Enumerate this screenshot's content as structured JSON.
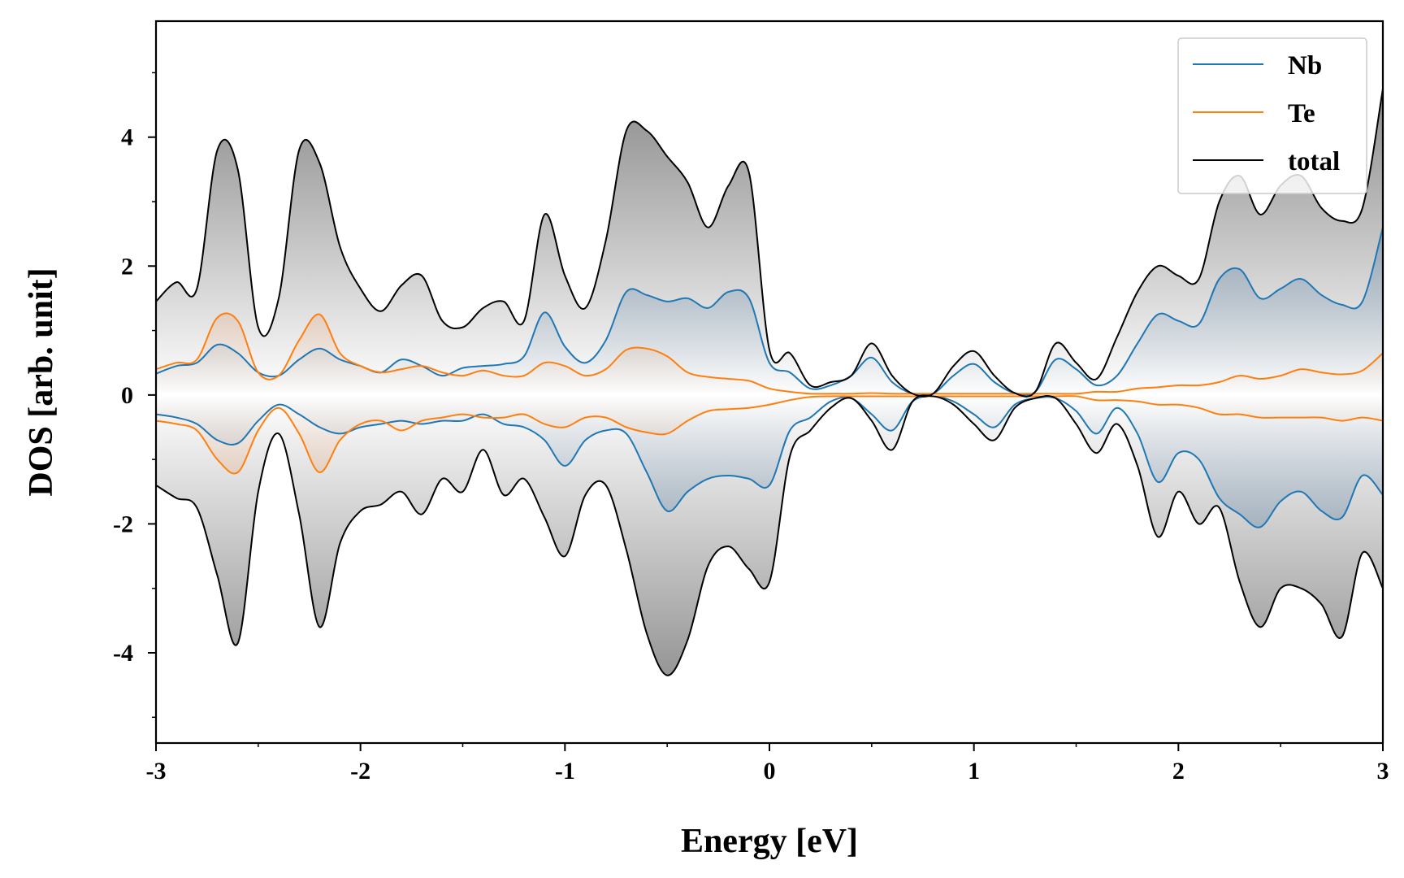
{
  "chart_data": {
    "type": "line",
    "title": "",
    "xlabel": "Energy [eV]",
    "ylabel": "DOS [arb. unit]",
    "xlim": [
      -3,
      3
    ],
    "ylim": [
      -5.4,
      5.8
    ],
    "x_ticks": [
      "-3",
      "-2",
      "-1",
      "0",
      "1",
      "2",
      "3"
    ],
    "y_ticks": [
      "-4",
      "-2",
      "0",
      "2",
      "4"
    ],
    "grid": false,
    "legend_position": "top-right",
    "fill": "spin-resolved areas shaded with vertical gradient from white at 0 to color at extremes",
    "colors": {
      "Nb": "#1f77b4",
      "Te": "#ff7f0e",
      "total": "#000000",
      "total_fill": "#8c8c8c"
    },
    "x": [
      -3.0,
      -2.9,
      -2.8,
      -2.7,
      -2.6,
      -2.5,
      -2.4,
      -2.3,
      -2.2,
      -2.1,
      -2.0,
      -1.9,
      -1.8,
      -1.7,
      -1.6,
      -1.5,
      -1.4,
      -1.3,
      -1.2,
      -1.1,
      -1.0,
      -0.9,
      -0.8,
      -0.7,
      -0.6,
      -0.5,
      -0.4,
      -0.3,
      -0.2,
      -0.1,
      0.0,
      0.1,
      0.2,
      0.3,
      0.4,
      0.5,
      0.6,
      0.7,
      0.8,
      0.9,
      1.0,
      1.1,
      1.2,
      1.3,
      1.4,
      1.5,
      1.6,
      1.7,
      1.8,
      1.9,
      2.0,
      2.1,
      2.2,
      2.3,
      2.4,
      2.5,
      2.6,
      2.7,
      2.8,
      2.9,
      3.0
    ],
    "series": [
      {
        "name": "Nb",
        "spin": "up",
        "values": [
          0.33,
          0.45,
          0.5,
          0.78,
          0.65,
          0.35,
          0.3,
          0.55,
          0.72,
          0.55,
          0.45,
          0.35,
          0.55,
          0.45,
          0.3,
          0.42,
          0.45,
          0.48,
          0.6,
          1.28,
          0.75,
          0.5,
          0.85,
          1.6,
          1.55,
          1.45,
          1.5,
          1.35,
          1.6,
          1.5,
          0.5,
          0.35,
          0.1,
          0.15,
          0.3,
          0.58,
          0.2,
          0.02,
          0.02,
          0.3,
          0.48,
          0.2,
          0.03,
          0.05,
          0.55,
          0.4,
          0.15,
          0.3,
          0.8,
          1.25,
          1.15,
          1.1,
          1.8,
          1.95,
          1.5,
          1.65,
          1.8,
          1.55,
          1.4,
          1.45,
          2.6
        ]
      },
      {
        "name": "Nb",
        "spin": "down",
        "values": [
          -0.3,
          -0.35,
          -0.45,
          -0.7,
          -0.75,
          -0.4,
          -0.15,
          -0.3,
          -0.5,
          -0.6,
          -0.5,
          -0.45,
          -0.4,
          -0.45,
          -0.4,
          -0.4,
          -0.3,
          -0.45,
          -0.5,
          -0.7,
          -1.1,
          -0.7,
          -0.55,
          -0.6,
          -1.2,
          -1.8,
          -1.5,
          -1.3,
          -1.25,
          -1.3,
          -1.4,
          -0.55,
          -0.35,
          -0.1,
          -0.05,
          -0.3,
          -0.55,
          -0.1,
          -0.02,
          -0.1,
          -0.3,
          -0.5,
          -0.15,
          -0.05,
          -0.05,
          -0.25,
          -0.6,
          -0.2,
          -0.6,
          -1.35,
          -0.9,
          -1.0,
          -1.6,
          -1.85,
          -2.05,
          -1.65,
          -1.5,
          -1.8,
          -1.9,
          -1.25,
          -1.55
        ]
      },
      {
        "name": "Te",
        "spin": "up",
        "values": [
          0.4,
          0.5,
          0.55,
          1.2,
          1.15,
          0.35,
          0.3,
          0.85,
          1.25,
          0.65,
          0.45,
          0.35,
          0.4,
          0.45,
          0.35,
          0.3,
          0.38,
          0.3,
          0.3,
          0.5,
          0.45,
          0.3,
          0.4,
          0.7,
          0.72,
          0.6,
          0.35,
          0.28,
          0.25,
          0.22,
          0.1,
          0.05,
          0.02,
          0.02,
          0.02,
          0.03,
          0.02,
          0.02,
          0.02,
          0.02,
          0.02,
          0.02,
          0.02,
          0.02,
          0.02,
          0.02,
          0.05,
          0.05,
          0.1,
          0.12,
          0.15,
          0.15,
          0.2,
          0.3,
          0.25,
          0.3,
          0.4,
          0.35,
          0.32,
          0.38,
          0.65
        ]
      },
      {
        "name": "Te",
        "spin": "down",
        "values": [
          -0.4,
          -0.45,
          -0.55,
          -1.0,
          -1.2,
          -0.55,
          -0.2,
          -0.6,
          -1.2,
          -0.7,
          -0.45,
          -0.4,
          -0.55,
          -0.4,
          -0.35,
          -0.3,
          -0.35,
          -0.35,
          -0.3,
          -0.45,
          -0.5,
          -0.35,
          -0.35,
          -0.5,
          -0.58,
          -0.6,
          -0.4,
          -0.25,
          -0.22,
          -0.2,
          -0.15,
          -0.08,
          -0.03,
          -0.02,
          -0.02,
          -0.02,
          -0.02,
          -0.02,
          -0.02,
          -0.02,
          -0.02,
          -0.02,
          -0.02,
          -0.02,
          -0.02,
          -0.02,
          -0.08,
          -0.08,
          -0.1,
          -0.15,
          -0.15,
          -0.2,
          -0.3,
          -0.3,
          -0.35,
          -0.35,
          -0.35,
          -0.35,
          -0.4,
          -0.35,
          -0.4
        ]
      },
      {
        "name": "total",
        "spin": "up",
        "values": [
          1.45,
          1.75,
          1.65,
          3.8,
          3.5,
          1.05,
          1.5,
          3.8,
          3.6,
          2.3,
          1.65,
          1.3,
          1.7,
          1.85,
          1.15,
          1.05,
          1.35,
          1.45,
          1.15,
          2.8,
          1.85,
          1.35,
          2.4,
          4.1,
          4.1,
          3.7,
          3.3,
          2.6,
          3.25,
          3.45,
          0.7,
          0.65,
          0.15,
          0.2,
          0.3,
          0.8,
          0.3,
          0.02,
          0.02,
          0.45,
          0.68,
          0.3,
          0.03,
          0.05,
          0.8,
          0.5,
          0.25,
          0.9,
          1.6,
          2.0,
          1.85,
          1.8,
          3.0,
          3.4,
          2.8,
          3.25,
          3.4,
          2.9,
          2.7,
          2.9,
          4.75
        ]
      },
      {
        "name": "total",
        "spin": "down",
        "values": [
          -1.4,
          -1.6,
          -1.75,
          -2.8,
          -3.85,
          -1.5,
          -0.6,
          -1.85,
          -3.6,
          -2.3,
          -1.8,
          -1.7,
          -1.5,
          -1.85,
          -1.3,
          -1.5,
          -0.85,
          -1.55,
          -1.3,
          -1.9,
          -2.5,
          -1.55,
          -1.4,
          -2.4,
          -3.7,
          -4.35,
          -3.8,
          -2.65,
          -2.35,
          -2.7,
          -2.9,
          -0.95,
          -0.55,
          -0.2,
          -0.05,
          -0.4,
          -0.85,
          -0.1,
          -0.02,
          -0.15,
          -0.45,
          -0.7,
          -0.2,
          -0.05,
          -0.05,
          -0.45,
          -0.9,
          -0.45,
          -1.1,
          -2.2,
          -1.5,
          -2.0,
          -1.75,
          -2.9,
          -3.6,
          -3.0,
          -3.0,
          -3.25,
          -3.75,
          -2.45,
          -3.0
        ]
      }
    ]
  }
}
